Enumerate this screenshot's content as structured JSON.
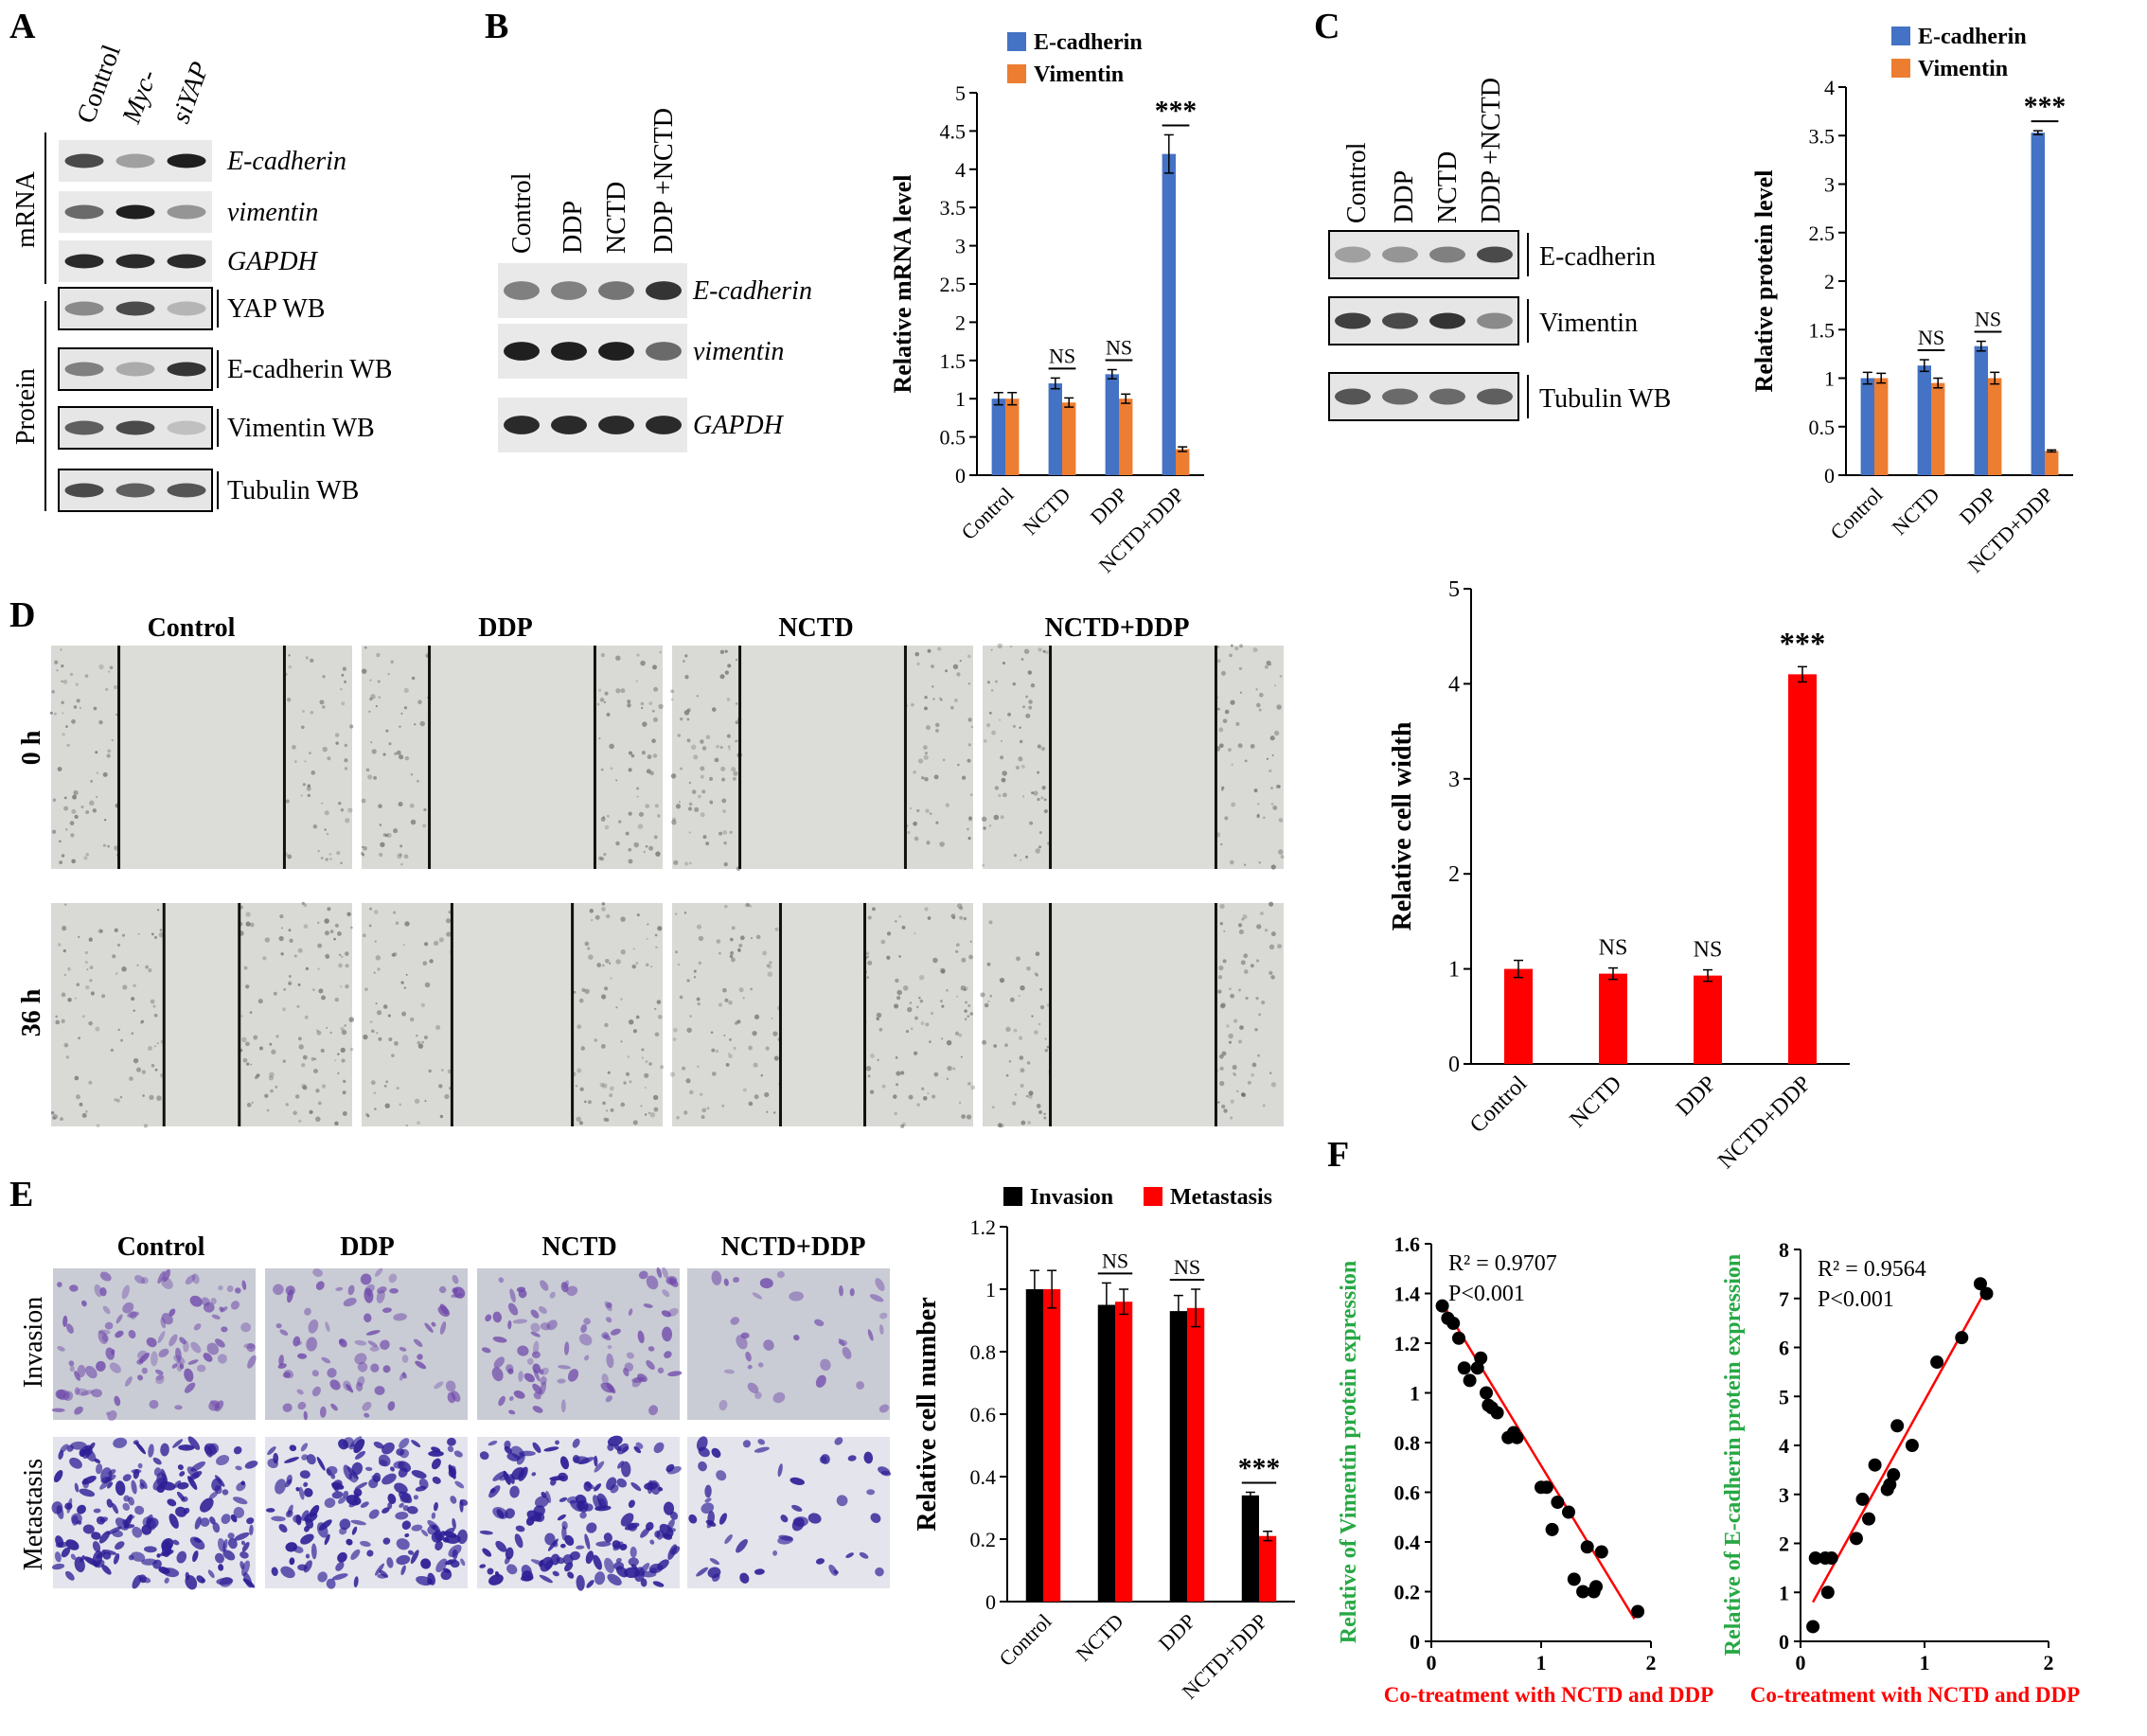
{
  "panels": {
    "A": {
      "letter": "A",
      "lanes": [
        "Control",
        "Myc-",
        "siYAP"
      ],
      "section_labels": [
        "mRNA",
        "Protein"
      ],
      "band_labels": [
        "E-cadherin",
        "vimentin",
        "GAPDH",
        "YAP WB",
        "E-cadherin WB",
        "Vimentin  WB",
        "Tubulin WB"
      ],
      "band_intensity": [
        [
          0.75,
          0.35,
          0.95
        ],
        [
          0.6,
          0.95,
          0.4
        ],
        [
          0.9,
          0.9,
          0.9
        ],
        [
          0.45,
          0.75,
          0.25
        ],
        [
          0.5,
          0.3,
          0.85
        ],
        [
          0.65,
          0.75,
          0.2
        ],
        [
          0.75,
          0.65,
          0.7
        ]
      ]
    },
    "B": {
      "letter": "B",
      "lanes": [
        "Control",
        "DDP",
        "NCTD",
        "DDP +NCTD"
      ],
      "band_labels": [
        "E-cadherin",
        "vimentin",
        "GAPDH"
      ],
      "band_intensity": [
        [
          0.5,
          0.5,
          0.55,
          0.85
        ],
        [
          0.95,
          0.95,
          0.95,
          0.6
        ],
        [
          0.9,
          0.9,
          0.9,
          0.9
        ]
      ]
    },
    "C": {
      "letter": "C",
      "lanes": [
        "Control",
        "DDP",
        "NCTD",
        "DDP +NCTD"
      ],
      "band_labels": [
        "E-cadherin",
        "Vimentin",
        "Tubulin  WB"
      ],
      "band_intensity": [
        [
          0.35,
          0.4,
          0.5,
          0.75
        ],
        [
          0.8,
          0.75,
          0.85,
          0.45
        ],
        [
          0.7,
          0.6,
          0.6,
          0.65
        ]
      ]
    },
    "D": {
      "letter": "D",
      "columns": [
        "Control",
        "DDP",
        "NCTD",
        "NCTD+DDP"
      ],
      "rows": [
        "0 h",
        "36 h"
      ],
      "gap_fraction": [
        [
          0.55,
          0.55,
          0.55,
          0.55
        ],
        [
          0.25,
          0.4,
          0.28,
          0.55
        ]
      ]
    },
    "E": {
      "letter": "E",
      "columns": [
        "Control",
        "DDP",
        "NCTD",
        "NCTD+DDP"
      ],
      "rows": [
        "Invasion",
        "Metastasis"
      ],
      "density": [
        [
          0.75,
          0.6,
          0.65,
          0.25
        ],
        [
          0.9,
          0.85,
          0.8,
          0.25
        ]
      ]
    },
    "F": {
      "letter": "F"
    }
  },
  "chart_data": [
    {
      "id": "B_chart",
      "type": "bar",
      "categories": [
        "Control",
        "NCTD",
        "DDP",
        "NCTD+DDP"
      ],
      "series": [
        {
          "name": "E-cadherin",
          "color": "#4472C4",
          "values": [
            1.0,
            1.2,
            1.32,
            4.2
          ],
          "errors": [
            0.08,
            0.07,
            0.06,
            0.25
          ]
        },
        {
          "name": "Vimentin",
          "color": "#ED7D31",
          "values": [
            1.0,
            0.95,
            1.0,
            0.34
          ],
          "errors": [
            0.08,
            0.06,
            0.06,
            0.03
          ]
        }
      ],
      "ylabel": "Relative mRNA level",
      "ylim": [
        0,
        5
      ],
      "yticks": [
        "0",
        "0.5",
        "1",
        "1.5",
        "2",
        "2.5",
        "3",
        "3.5",
        "4",
        "4.5",
        "5"
      ],
      "annotations": [
        "NS",
        "NS",
        "***"
      ],
      "legend": "top"
    },
    {
      "id": "C_chart",
      "type": "bar",
      "categories": [
        "Control",
        "NCTD",
        "DDP",
        "NCTD+DDP"
      ],
      "series": [
        {
          "name": "E-cadherin",
          "color": "#4472C4",
          "values": [
            1.0,
            1.13,
            1.33,
            3.53
          ],
          "errors": [
            0.06,
            0.06,
            0.05,
            0.02
          ]
        },
        {
          "name": "Vimentin",
          "color": "#ED7D31",
          "values": [
            1.0,
            0.95,
            1.0,
            0.25
          ],
          "errors": [
            0.05,
            0.05,
            0.06,
            0.01
          ]
        }
      ],
      "ylabel": "Relative protein level",
      "ylim": [
        0,
        4
      ],
      "yticks": [
        "0",
        "0.5",
        "1",
        "1.5",
        "2",
        "2.5",
        "3",
        "3.5",
        "4"
      ],
      "annotations": [
        "NS",
        "NS",
        "***"
      ],
      "legend": "top"
    },
    {
      "id": "D_chart",
      "type": "bar",
      "categories": [
        "Control",
        "NCTD",
        "DDP",
        "NCTD+DDP"
      ],
      "series": [
        {
          "name": "",
          "color": "#FF0000",
          "values": [
            1.0,
            0.95,
            0.93,
            4.1
          ],
          "errors": [
            0.09,
            0.06,
            0.06,
            0.08
          ]
        }
      ],
      "ylabel": "Relative cell width",
      "ylim": [
        0,
        5
      ],
      "yticks": [
        "0",
        "1",
        "2",
        "3",
        "4",
        "5"
      ],
      "annotations": [
        "NS",
        "NS",
        "***"
      ]
    },
    {
      "id": "E_chart",
      "type": "bar",
      "categories": [
        "Control",
        "NCTD",
        "DDP",
        "NCTD+DDP"
      ],
      "series": [
        {
          "name": "Invasion",
          "color": "#000000",
          "values": [
            1.0,
            0.95,
            0.93,
            0.34
          ],
          "errors": [
            0.06,
            0.07,
            0.05,
            0.01
          ]
        },
        {
          "name": "Metastasis",
          "color": "#FF0000",
          "values": [
            1.0,
            0.96,
            0.94,
            0.21
          ],
          "errors": [
            0.06,
            0.04,
            0.06,
            0.015
          ]
        }
      ],
      "ylabel": "Relative cell number",
      "ylim": [
        0,
        1.2
      ],
      "yticks": [
        "0",
        "0.2",
        "0.4",
        "0.6",
        "0.8",
        "1",
        "1.2"
      ],
      "annotations": [
        "NS",
        "NS",
        "***"
      ],
      "legend": "top"
    },
    {
      "id": "F1_chart",
      "type": "scatter",
      "ylabel": "Relative of Vimentin protein expression",
      "xlabel": "Co-treatment  with  NCTD  and  DDP",
      "xlim": [
        0,
        2
      ],
      "ylim": [
        0,
        1.6
      ],
      "xticks": [
        "0",
        "1",
        "2"
      ],
      "yticks": [
        "0",
        "0.2",
        "0.4",
        "0.6",
        "0.8",
        "1",
        "1.2",
        "1.4",
        "1.6"
      ],
      "annotation": [
        "R² = 0.9707",
        "P<0.001"
      ],
      "trendline": {
        "x": [
          0.1,
          1.85
        ],
        "y": [
          1.36,
          0.09
        ]
      },
      "x": [
        0.1,
        0.15,
        0.2,
        0.25,
        0.3,
        0.35,
        0.42,
        0.45,
        0.5,
        0.52,
        0.55,
        0.6,
        0.7,
        0.75,
        0.78,
        1.0,
        1.05,
        1.1,
        1.15,
        1.25,
        1.3,
        1.38,
        1.42,
        1.48,
        1.5,
        1.55,
        1.88
      ],
      "y": [
        1.35,
        1.3,
        1.28,
        1.22,
        1.1,
        1.05,
        1.1,
        1.14,
        1.0,
        0.95,
        0.94,
        0.92,
        0.82,
        0.84,
        0.82,
        0.62,
        0.62,
        0.45,
        0.56,
        0.52,
        0.25,
        0.2,
        0.38,
        0.2,
        0.22,
        0.36,
        0.12
      ]
    },
    {
      "id": "F2_chart",
      "type": "scatter",
      "ylabel": "Relative of E-cadherin protein expression",
      "xlabel": "Co-treatment  with  NCTD  and  DDP",
      "xlim": [
        0,
        2
      ],
      "ylim": [
        0,
        8
      ],
      "xticks": [
        "0",
        "1",
        "2"
      ],
      "yticks": [
        "0",
        "1",
        "2",
        "3",
        "4",
        "5",
        "6",
        "7",
        "8"
      ],
      "annotation": [
        "R² = 0.9564",
        "P<0.001"
      ],
      "trendline": {
        "x": [
          0.1,
          1.5
        ],
        "y": [
          0.8,
          7.2
        ]
      },
      "x": [
        0.1,
        0.12,
        0.2,
        0.22,
        0.25,
        0.45,
        0.5,
        0.55,
        0.6,
        0.7,
        0.72,
        0.75,
        0.78,
        0.9,
        1.1,
        1.3,
        1.45,
        1.5
      ],
      "y": [
        0.3,
        1.7,
        1.7,
        1.0,
        1.7,
        2.1,
        2.9,
        2.5,
        3.6,
        3.1,
        3.2,
        3.4,
        4.4,
        4.0,
        5.7,
        6.2,
        7.3,
        7.1
      ]
    }
  ]
}
